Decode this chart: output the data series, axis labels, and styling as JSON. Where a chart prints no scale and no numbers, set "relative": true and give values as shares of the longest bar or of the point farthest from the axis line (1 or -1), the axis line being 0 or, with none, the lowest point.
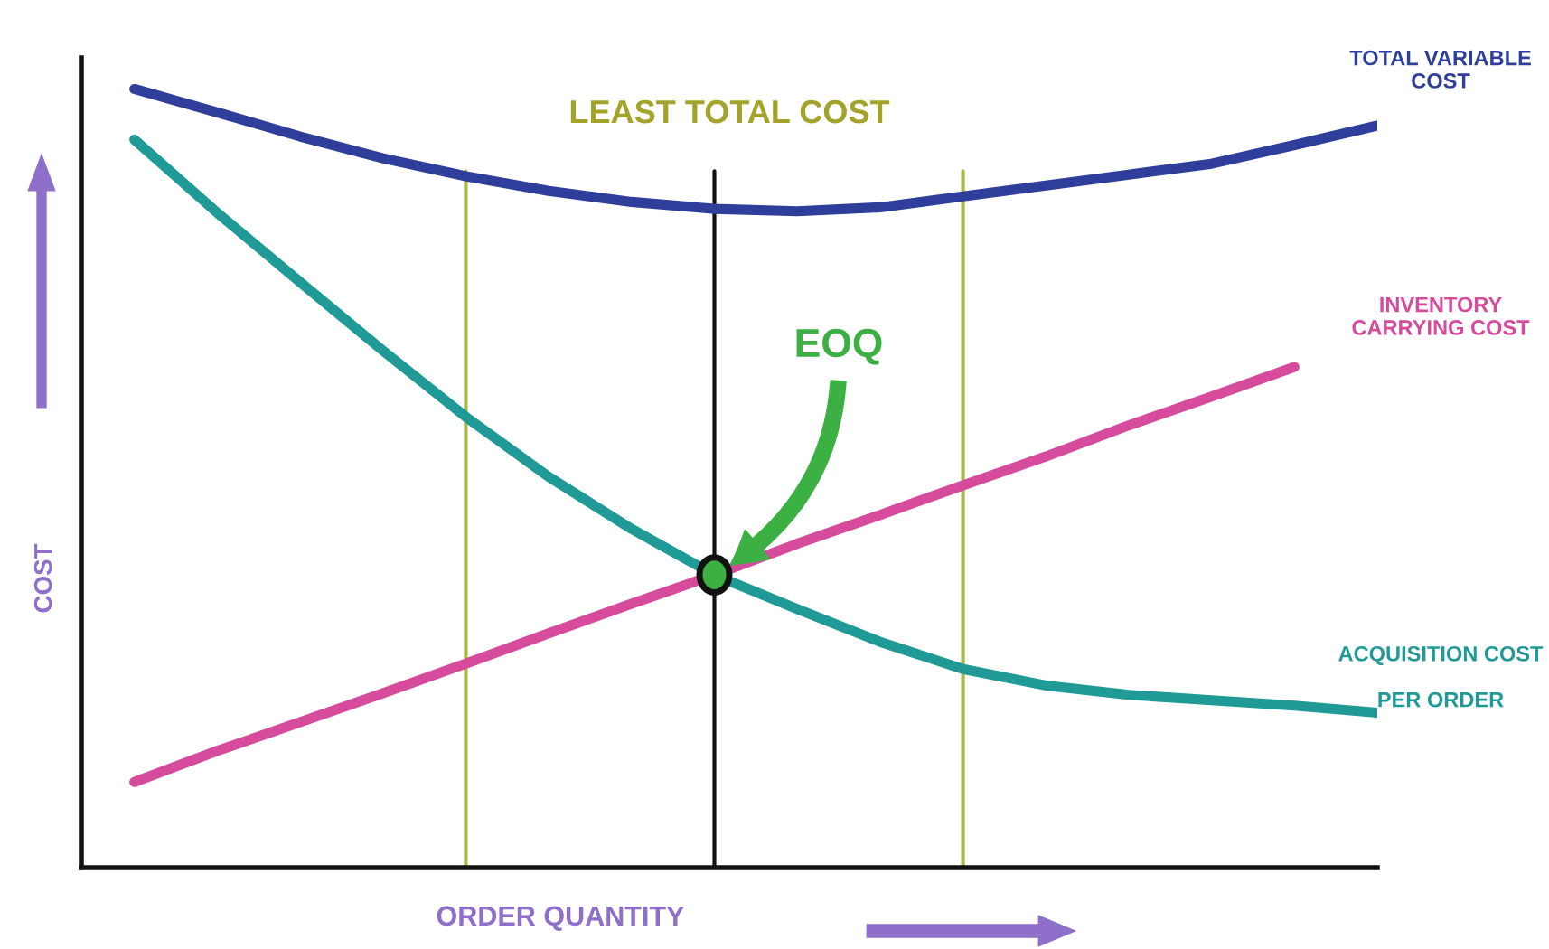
{
  "chart_data": {
    "type": "line",
    "relative": true,
    "xlabel": "ORDER QUANTITY",
    "ylabel": "COST",
    "categories": [
      null,
      null,
      null,
      null,
      null,
      null,
      null,
      null,
      null,
      null,
      null,
      null,
      null,
      null,
      null,
      null
    ],
    "series": [
      {
        "name": "TOTAL VARIABLE COST",
        "color": "#2e3e9a",
        "values": [
          1.0,
          0.97,
          0.939,
          0.911,
          0.888,
          0.869,
          0.855,
          0.846,
          0.843,
          0.848,
          0.862,
          0.876,
          0.89,
          0.904,
          0.928,
          0.953
        ]
      },
      {
        "name": "INVENTORY CARRYING COST",
        "color": "#d64b9b",
        "values": [
          0.11,
          0.15,
          0.187,
          0.224,
          0.262,
          0.301,
          0.339,
          0.376,
          0.416,
          0.453,
          0.491,
          0.528,
          0.568,
          0.605,
          0.643,
          null
        ]
      },
      {
        "name": "ACQUISITION COST PER ORDER",
        "color": "#1f9a96",
        "values": [
          0.935,
          0.841,
          0.752,
          0.664,
          0.579,
          0.502,
          0.435,
          0.376,
          0.332,
          0.29,
          0.255,
          0.234,
          0.222,
          0.215,
          0.208,
          0.199
        ]
      }
    ],
    "annotations": [
      {
        "text": "LEAST TOTAL COST"
      },
      {
        "text": "EOQ"
      }
    ]
  }
}
